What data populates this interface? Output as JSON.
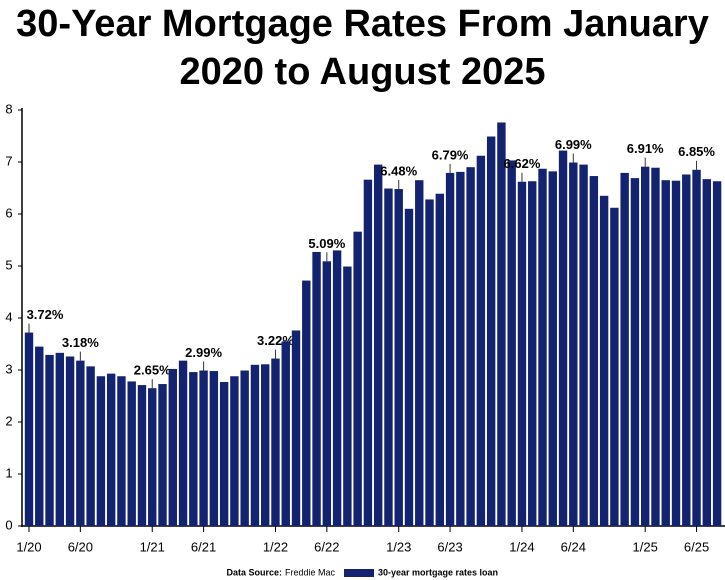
{
  "chart_data": {
    "type": "bar",
    "title": "30-Year Mortgage Rates From January 2020 to August 2025",
    "categories": [
      "1/20",
      null,
      null,
      null,
      null,
      "6/20",
      null,
      null,
      null,
      null,
      null,
      null,
      "1/21",
      null,
      null,
      null,
      null,
      "6/21",
      null,
      null,
      null,
      null,
      null,
      null,
      "1/22",
      null,
      null,
      null,
      null,
      "6/22",
      null,
      null,
      null,
      null,
      null,
      null,
      "1/23",
      null,
      null,
      null,
      null,
      "6/23",
      null,
      null,
      null,
      null,
      null,
      null,
      "1/24",
      null,
      null,
      null,
      null,
      "6/24",
      null,
      null,
      null,
      null,
      null,
      null,
      "1/25",
      null,
      null,
      null,
      null,
      "6/25",
      null,
      null
    ],
    "series": [
      {
        "name": "30-year mortgage rates loan",
        "color": "#13236f",
        "values": [
          3.72,
          3.45,
          3.29,
          3.33,
          3.26,
          3.18,
          3.07,
          2.88,
          2.93,
          2.88,
          2.78,
          2.71,
          2.65,
          2.73,
          3.02,
          3.18,
          2.96,
          2.99,
          2.98,
          2.77,
          2.88,
          2.99,
          3.1,
          3.11,
          3.22,
          3.55,
          3.76,
          4.72,
          5.27,
          5.09,
          5.3,
          4.99,
          5.66,
          6.66,
          6.95,
          6.49,
          6.48,
          6.1,
          6.65,
          6.28,
          6.39,
          6.79,
          6.81,
          6.9,
          7.12,
          7.49,
          7.76,
          7.03,
          6.62,
          6.63,
          6.87,
          6.82,
          7.22,
          6.99,
          6.95,
          6.73,
          6.35,
          6.12,
          6.79,
          6.69,
          6.91,
          6.89,
          6.65,
          6.64,
          6.76,
          6.85,
          6.67,
          6.63
        ],
        "value_labels": [
          "3.72%",
          null,
          null,
          null,
          null,
          "3.18%",
          null,
          null,
          null,
          null,
          null,
          null,
          "2.65%",
          null,
          null,
          null,
          null,
          "2.99%",
          null,
          null,
          null,
          null,
          null,
          null,
          "3.22%",
          null,
          null,
          null,
          null,
          "5.09%",
          null,
          null,
          null,
          null,
          null,
          null,
          "6.48%",
          null,
          null,
          null,
          null,
          "6.79%",
          null,
          null,
          null,
          null,
          null,
          null,
          "6.62%",
          null,
          null,
          null,
          null,
          "6.99%",
          null,
          null,
          null,
          null,
          null,
          null,
          "6.91%",
          null,
          null,
          null,
          null,
          "6.85%",
          null,
          null
        ]
      }
    ],
    "ylim": [
      0,
      8
    ],
    "yticks": [
      0,
      1,
      2,
      3,
      4,
      5,
      6,
      7,
      8
    ],
    "source_label": "Data Source:",
    "source": "Freddie Mac"
  }
}
